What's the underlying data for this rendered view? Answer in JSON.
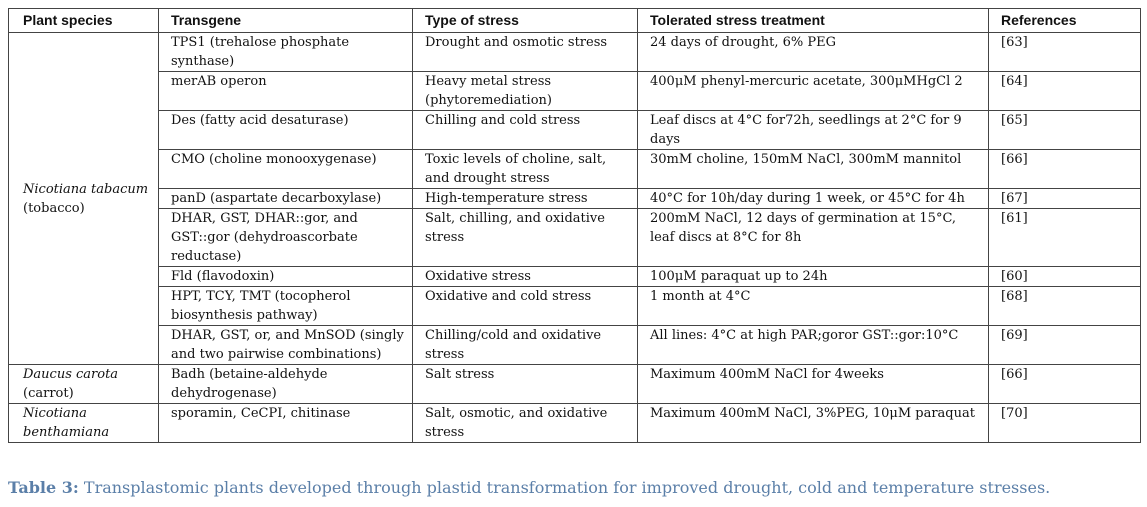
{
  "table": {
    "headers": [
      "Plant species",
      "Transgene",
      "Type of stress",
      "Tolerated stress treatment",
      "References"
    ],
    "groups": [
      {
        "species": "Nicotiana tabacum",
        "common": "(tobacco)",
        "rows": [
          {
            "transgene": "TPS1 (trehalose phosphate synthase)",
            "stress": "Drought and osmotic stress",
            "treatment": "24 days of drought, 6% PEG",
            "ref": "[63]"
          },
          {
            "transgene": "merAB operon",
            "stress": "Heavy metal stress (phytoremediation)",
            "treatment": "400μM phenyl-mercuric acetate, 300μMHgCl 2",
            "ref": "[64]"
          },
          {
            "transgene": "Des (fatty acid desaturase)",
            "stress": "Chilling and cold stress",
            "treatment": "Leaf discs at 4°C for72h, seedlings at 2°C for 9 days",
            "ref": "[65]"
          },
          {
            "transgene": "CMO (choline monooxygenase)",
            "stress": "Toxic levels of choline, salt, and drought stress",
            "treatment": "30mM choline, 150mM NaCl, 300mM mannitol",
            "ref": "[66]"
          },
          {
            "transgene": "panD (aspartate decarboxylase)",
            "stress": "High-temperature stress",
            "treatment": "40°C for 10h/day during 1 week, or 45°C for 4h",
            "ref": "[67]"
          },
          {
            "transgene": "DHAR, GST, DHAR::gor, and GST::gor (dehydroascorbate reductase)",
            "stress": "Salt, chilling, and oxidative stress",
            "treatment": "200mM NaCl, 12 days of germination at 15°C, leaf discs at 8°C for 8h",
            "ref": "[61]"
          },
          {
            "transgene": "Fld (flavodoxin)",
            "stress": "Oxidative stress",
            "treatment": "100μM paraquat up to 24h",
            "ref": "[60]"
          },
          {
            "transgene": "HPT, TCY, TMT (tocopherol biosynthesis pathway)",
            "stress": "Oxidative and cold stress",
            "treatment": "1 month at 4°C",
            "ref": "[68]"
          },
          {
            "transgene": "DHAR, GST, or, and MnSOD (singly and two pairwise combinations)",
            "stress": "Chilling/cold and oxidative stress",
            "treatment": "All lines: 4°C at high PAR;goror GST::gor:10°C",
            "ref": "[69]"
          }
        ]
      },
      {
        "species": "Daucus carota",
        "common": "(carrot)",
        "rows": [
          {
            "transgene": "Badh (betaine-aldehyde dehydrogenase)",
            "stress": "Salt stress",
            "treatment": "Maximum 400mM NaCl for 4weeks",
            "ref": "[66]"
          }
        ]
      },
      {
        "species": "Nicotiana benthamiana",
        "common": "",
        "rows": [
          {
            "transgene": "sporamin, CeCPI, chitinase",
            "stress": "Salt, osmotic, and oxidative stress",
            "treatment": "Maximum 400mM NaCl, 3%PEG, 10μM paraquat",
            "ref": "[70]"
          }
        ]
      }
    ]
  },
  "caption": {
    "label": "Table 3:",
    "text": "Transplastomic plants developed through plastid transformation for improved drought, cold and temperature stresses."
  }
}
